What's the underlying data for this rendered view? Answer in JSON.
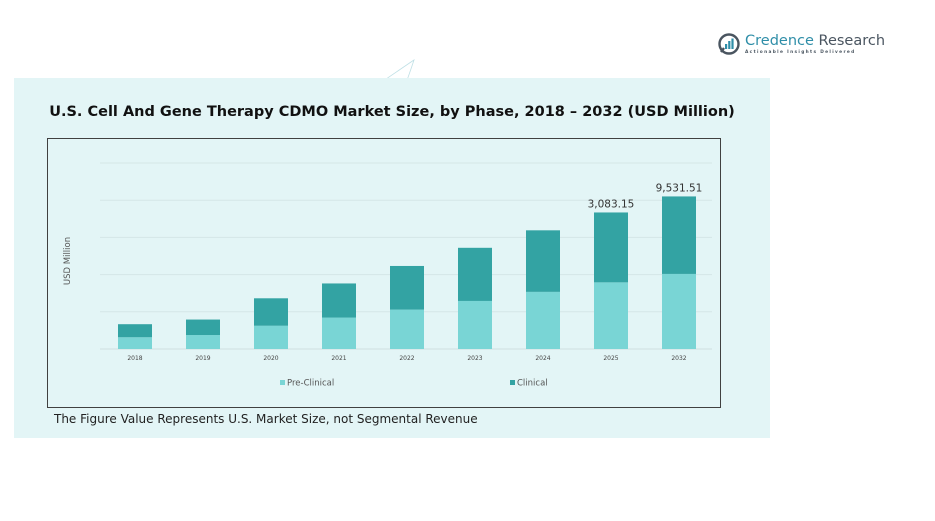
{
  "brand": {
    "name_part1": "Credence",
    "name_part2": " Research",
    "tagline": "Actionable Insights Delivered",
    "colors": {
      "primary": "#2f8ea8",
      "text": "#4a5560"
    }
  },
  "footnote": "The Figure Value Represents U.S. Market Size, not Segmental Revenue",
  "chart_data": {
    "type": "bar",
    "stacked": true,
    "title": "U.S. Cell And Gene Therapy CDMO Market Size, by Phase, 2018 – 2032 (USD Million)",
    "xlabel": "",
    "ylabel": "USD Million",
    "categories": [
      "2018",
      "2019",
      "2020",
      "2021",
      "2022",
      "2023",
      "2024",
      "2025",
      "2032"
    ],
    "series": [
      {
        "name": "Pre-Clinical",
        "color": "#79d5d5",
        "values": [
          265,
          315,
          525,
          710,
          890,
          1085,
          1290,
          1505,
          1695
        ]
      },
      {
        "name": "Clinical",
        "color": "#33a3a3",
        "values": [
          295,
          350,
          620,
          770,
          985,
          1200,
          1390,
          1578,
          1750
        ]
      }
    ],
    "totals_labeled": {
      "2025": "3,083.15",
      "2032": "9,531.51"
    },
    "axis_note": "Y axis unlabeled; 2032 bar drawn on a compressed scale relative to its labeled value",
    "ylim": [
      0,
      4200
    ],
    "gridlines": 5,
    "grid": true,
    "legend": "bottom"
  }
}
